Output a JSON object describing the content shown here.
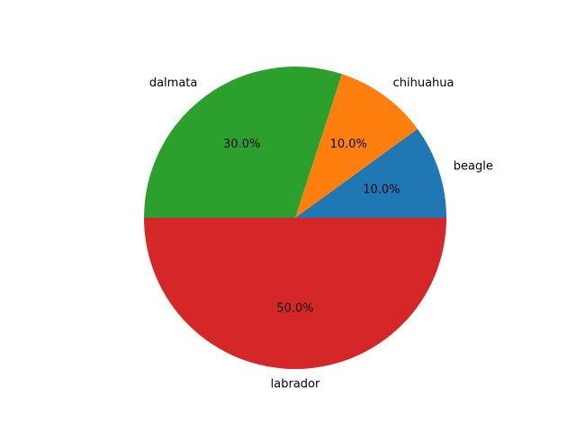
{
  "chart_data": {
    "type": "pie",
    "categories": [
      "beagle",
      "chihuahua",
      "dalmata",
      "labrador"
    ],
    "values": [
      10,
      10,
      30,
      50
    ],
    "percent_labels": [
      "10.0%",
      "10.0%",
      "30.0%",
      "50.0%"
    ],
    "colors": [
      "#1f77b4",
      "#ff7f0e",
      "#2ca02c",
      "#d62728"
    ],
    "start_angle_deg": 0,
    "direction": "counterclockwise",
    "title": ""
  }
}
